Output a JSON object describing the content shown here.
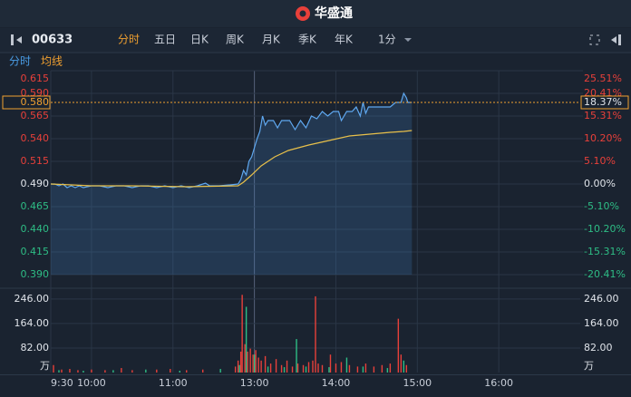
{
  "logo": "华盛通",
  "symbol": "00633",
  "tabs": [
    "分时",
    "五日",
    "日K",
    "周K",
    "月K",
    "季K",
    "年K",
    "1分"
  ],
  "chart_data": [
    {
      "type": "line",
      "xlim": [
        0,
        390
      ],
      "xticks": [
        {
          "value": 0,
          "label": "9:30"
        },
        {
          "value": 30,
          "label": "10:00"
        },
        {
          "value": 90,
          "label": "11:00"
        },
        {
          "value": 150,
          "label": "13:00"
        },
        {
          "value": 210,
          "label": "14:00"
        },
        {
          "value": 270,
          "label": "15:00"
        },
        {
          "value": 330,
          "label": "16:00"
        }
      ],
      "ylim": [
        0.39,
        0.615
      ],
      "yticks": [
        {
          "value": 0.39,
          "label": "0.390"
        },
        {
          "value": 0.415,
          "label": "0.415"
        },
        {
          "value": 0.44,
          "label": "0.440"
        },
        {
          "value": 0.465,
          "label": "0.465"
        },
        {
          "value": 0.49,
          "label": "0.490"
        },
        {
          "value": 0.515,
          "label": "0.515"
        },
        {
          "value": 0.54,
          "label": "0.540"
        },
        {
          "value": 0.565,
          "label": "0.565"
        },
        {
          "value": 0.59,
          "label": "0.590"
        },
        {
          "value": 0.615,
          "label": "0.615"
        }
      ],
      "y2lim": [
        -20.41,
        25.51
      ],
      "y2ticks": [
        {
          "value": -20.41,
          "label": "-20.41%"
        },
        {
          "value": -15.31,
          "label": "-15.31%"
        },
        {
          "value": -10.2,
          "label": "-10.20%"
        },
        {
          "value": -5.1,
          "label": "-5.10%"
        },
        {
          "value": 0,
          "label": "0.00%"
        },
        {
          "value": 5.1,
          "label": "5.10%"
        },
        {
          "value": 10.2,
          "label": "10.20%"
        },
        {
          "value": 15.31,
          "label": "15.31%"
        },
        {
          "value": 20.41,
          "label": "20.41%"
        },
        {
          "value": 25.51,
          "label": "25.51%"
        }
      ],
      "current_price": {
        "value": 0.58,
        "label": "0.580"
      },
      "current_change": {
        "value": 18.37,
        "label": "18.37%"
      },
      "grid": true,
      "series": [
        {
          "name": "分时",
          "color": "#5fa8f0",
          "x": [
            0,
            3,
            6,
            9,
            12,
            15,
            18,
            21,
            24,
            30,
            36,
            42,
            48,
            54,
            60,
            66,
            72,
            78,
            84,
            90,
            96,
            102,
            108,
            114,
            117,
            124,
            132,
            138,
            140,
            142,
            144,
            146,
            148,
            150,
            152,
            154,
            156,
            158,
            160,
            164,
            167,
            170,
            176,
            180,
            184,
            188,
            192,
            196,
            200,
            204,
            208,
            212,
            214,
            218,
            222,
            225,
            228,
            230,
            232,
            234,
            240,
            250,
            254,
            258,
            260,
            262,
            263,
            266
          ],
          "values": [
            0.49,
            0.49,
            0.488,
            0.49,
            0.486,
            0.488,
            0.486,
            0.488,
            0.486,
            0.488,
            0.488,
            0.486,
            0.488,
            0.488,
            0.486,
            0.488,
            0.488,
            0.486,
            0.488,
            0.486,
            0.488,
            0.486,
            0.488,
            0.491,
            0.488,
            0.488,
            0.489,
            0.49,
            0.495,
            0.505,
            0.5,
            0.515,
            0.52,
            0.53,
            0.54,
            0.548,
            0.565,
            0.555,
            0.56,
            0.56,
            0.552,
            0.56,
            0.56,
            0.55,
            0.56,
            0.552,
            0.565,
            0.562,
            0.57,
            0.565,
            0.57,
            0.57,
            0.56,
            0.57,
            0.57,
            0.575,
            0.565,
            0.58,
            0.568,
            0.575,
            0.575,
            0.575,
            0.58,
            0.58,
            0.59,
            0.585,
            0.58,
            0.58
          ]
        },
        {
          "name": "均线",
          "color": "#e8c04a",
          "x": [
            0,
            30,
            60,
            100,
            138,
            142,
            148,
            155,
            165,
            175,
            190,
            205,
            220,
            235,
            250,
            260,
            266
          ],
          "values": [
            0.49,
            0.488,
            0.488,
            0.487,
            0.488,
            0.492,
            0.5,
            0.51,
            0.52,
            0.527,
            0.533,
            0.538,
            0.543,
            0.545,
            0.547,
            0.548,
            0.549
          ]
        }
      ]
    },
    {
      "type": "bar",
      "xlim": [
        0,
        390
      ],
      "ylim": [
        0,
        276
      ],
      "yticks": [
        {
          "value": 82,
          "label": "82.00"
        },
        {
          "value": 164,
          "label": "164.00"
        },
        {
          "value": 246,
          "label": "246.00"
        }
      ],
      "unit": "万",
      "series": [
        {
          "color": "#e8403a",
          "x": [
            2,
            8,
            14,
            20,
            30,
            40,
            52,
            60,
            78,
            88,
            100,
            112,
            136,
            138,
            140,
            141,
            143,
            145,
            147,
            149,
            151,
            153,
            155,
            158,
            162,
            166,
            170,
            174,
            178,
            182,
            186,
            190,
            193,
            195,
            197,
            200,
            206,
            210,
            214,
            220,
            226,
            232,
            238,
            244,
            250,
            256,
            258,
            262
          ],
          "values": [
            25,
            10,
            12,
            8,
            10,
            8,
            15,
            8,
            10,
            12,
            8,
            10,
            20,
            40,
            70,
            260,
            95,
            70,
            80,
            60,
            75,
            50,
            40,
            55,
            30,
            45,
            25,
            40,
            20,
            30,
            25,
            35,
            40,
            255,
            30,
            25,
            60,
            30,
            35,
            25,
            20,
            30,
            20,
            25,
            30,
            180,
            60,
            25
          ]
        },
        {
          "color": "#2ebd85",
          "x": [
            6,
            24,
            46,
            70,
            95,
            125,
            139,
            144,
            150,
            160,
            172,
            181,
            188,
            205,
            218,
            230,
            248,
            260
          ],
          "values": [
            8,
            6,
            8,
            10,
            6,
            12,
            25,
            220,
            60,
            20,
            18,
            112,
            20,
            18,
            50,
            20,
            15,
            40
          ]
        }
      ]
    }
  ]
}
